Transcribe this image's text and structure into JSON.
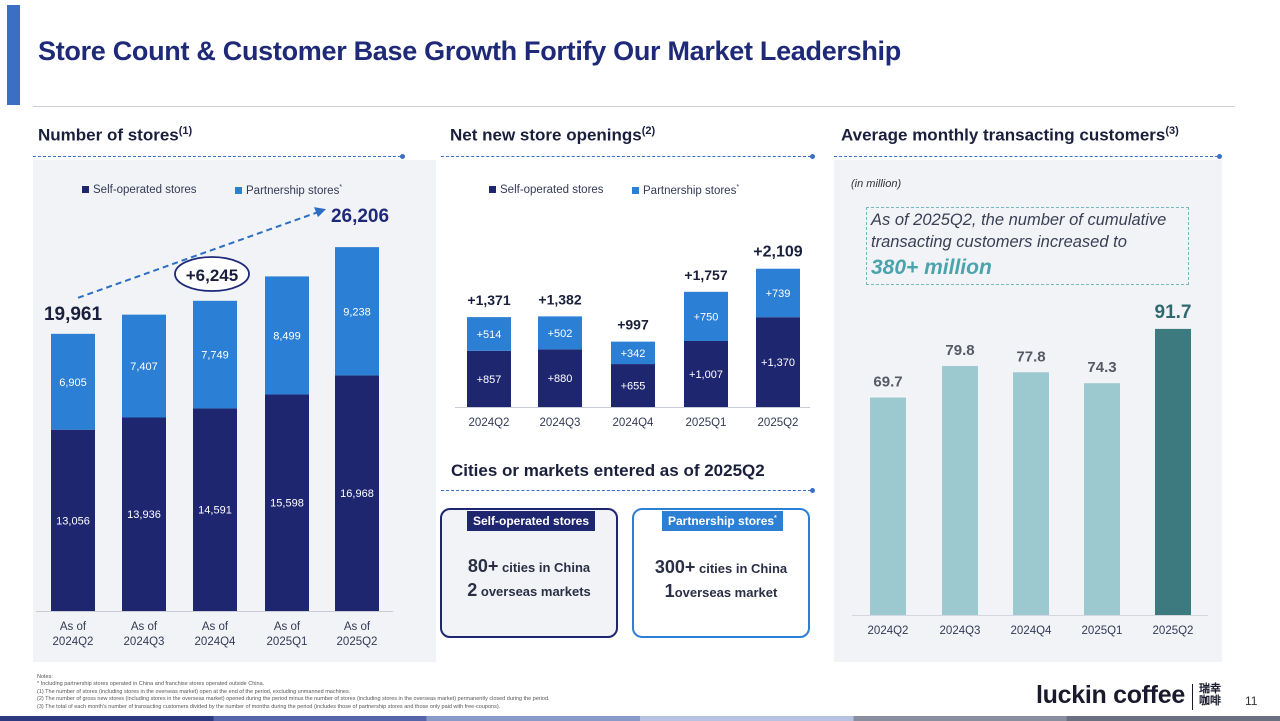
{
  "title": "Store Count & Customer Base Growth Fortify Our Market Leadership",
  "sections": {
    "stores": {
      "title": "Number of stores",
      "note": "(1)"
    },
    "openings": {
      "title": "Net new store openings",
      "note": "(2)"
    },
    "customers": {
      "title": "Average monthly transacting customers",
      "note": "(3)"
    },
    "cities": {
      "title": "Cities or markets entered as of 2025Q2"
    }
  },
  "legend": {
    "self": "Self-operated stores",
    "partner": "Partnership stores",
    "partner_mark": "*"
  },
  "colors": {
    "self": "#1f2670",
    "partner": "#2b7fd4",
    "customers_light": "#9cc9cf",
    "customers_dark": "#3d7a80",
    "title": "#1e2a78",
    "accent": "#3a6fc4"
  },
  "chart_data": [
    {
      "type": "bar",
      "stacked": true,
      "title": "Number of stores",
      "categories": [
        "As of 2024Q2",
        "As of 2024Q3",
        "As of 2024Q4",
        "As of 2025Q1",
        "As of 2025Q2"
      ],
      "category_lines": [
        [
          "As of",
          "2024Q2"
        ],
        [
          "As of",
          "2024Q3"
        ],
        [
          "As of",
          "2024Q4"
        ],
        [
          "As of",
          "2025Q1"
        ],
        [
          "As of",
          "2025Q2"
        ]
      ],
      "series": [
        {
          "name": "Self-operated stores",
          "values": [
            13056,
            13936,
            14591,
            15598,
            16968
          ],
          "labels": [
            "13,056",
            "13,936",
            "14,591",
            "15,598",
            "16,968"
          ]
        },
        {
          "name": "Partnership stores*",
          "values": [
            6905,
            7407,
            7749,
            8499,
            9238
          ],
          "labels": [
            "6,905",
            "7,407",
            "7,749",
            "8,499",
            "9,238"
          ]
        }
      ],
      "totals": [
        "19,961",
        "",
        "",
        "",
        "26,206"
      ],
      "growth_annotation": "+6,245",
      "legend_position": "top",
      "ylim": [
        0,
        28000
      ]
    },
    {
      "type": "bar",
      "stacked": true,
      "title": "Net new store openings",
      "categories": [
        "2024Q2",
        "2024Q3",
        "2024Q4",
        "2025Q1",
        "2025Q2"
      ],
      "series": [
        {
          "name": "Self-operated stores",
          "values": [
            857,
            880,
            655,
            1007,
            1370
          ],
          "labels": [
            "+857",
            "+880",
            "+655",
            "+1,007",
            "+1,370"
          ]
        },
        {
          "name": "Partnership stores*",
          "values": [
            514,
            502,
            342,
            750,
            739
          ],
          "labels": [
            "+514",
            "+502",
            "+342",
            "+750",
            "+739"
          ]
        }
      ],
      "totals": [
        "+1,371",
        "+1,382",
        "+997",
        "+1,757",
        "+2,109"
      ],
      "legend_position": "top",
      "ylim": [
        0,
        2300
      ]
    },
    {
      "type": "bar",
      "title": "Average monthly transacting customers",
      "unit_label": "(in million)",
      "categories": [
        "2024Q2",
        "2024Q3",
        "2024Q4",
        "2025Q1",
        "2025Q2"
      ],
      "values": [
        69.7,
        79.8,
        77.8,
        74.3,
        91.7
      ],
      "labels": [
        "69.7",
        "79.8",
        "77.8",
        "74.3",
        "91.7"
      ],
      "highlight_index": 4,
      "ylim": [
        0,
        100
      ]
    }
  ],
  "callout": {
    "text": "As of 2025Q2, the number of cumulative transacting customers increased to",
    "highlight": "380+ million"
  },
  "markets": {
    "self": {
      "tag": "Self-operated stores",
      "line1_big": "80+",
      "line1": "cities in China",
      "line2_big": "2",
      "line2": "overseas markets"
    },
    "partner": {
      "tag": "Partnership stores",
      "tag_mark": "*",
      "line1_big": "300+",
      "line1": "cities in China",
      "line2_big": "1",
      "line2": "overseas market"
    }
  },
  "notes": {
    "heading": "Notes:",
    "lines": [
      "*    Including partnership stores operated in China and franchise stores operated outside China.",
      "(1)   The number of stores (including stores in the overseas market) open at the end of the period, excluding unmanned machines.",
      "(2)   The number of gross new stores (including stores in the overseas market) opened during the period minus the number of stores (including stores in the overseas market) permanently closed during the period.",
      "(3)   The total of each month's number of transacting customers divided by the number of months during the period (includes those of partnership stores and those only paid with free-coupons)."
    ]
  },
  "logo": {
    "text": "luckin coffee",
    "cn1": "瑞幸",
    "cn2": "咖啡"
  },
  "page_number": "11",
  "footer_colors": [
    "#2d3a80",
    "#5566a8",
    "#8a9ac8",
    "#b6c2e0",
    "#8a8fa0",
    "#6b7080"
  ]
}
